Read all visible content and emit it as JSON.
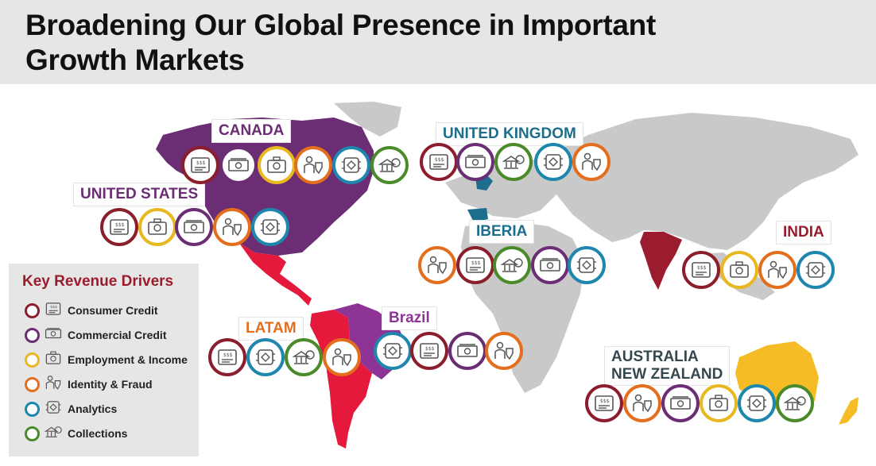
{
  "header": {
    "title_line1": "Broadening Our Global Presence in Important",
    "title_line2": "Growth Markets"
  },
  "colors": {
    "consumer_credit": "#8b1e2d",
    "commercial_credit": "#6b2d73",
    "employment_income": "#e8b821",
    "identity_fraud": "#e36f1e",
    "analytics": "#1f86ad",
    "collections": "#4a8a2a",
    "canada_us": "#6b2d73",
    "latam": "#e4193b",
    "brazil": "#8f3497",
    "india": "#9b1c2c",
    "australia": "#f6bc25",
    "uk_iberia": "#1d6e8c",
    "map_gray": "#c9c9c9"
  },
  "regions": {
    "canada": "CANADA",
    "united_states": "UNITED STATES",
    "united_kingdom": "UNITED KINGDOM",
    "iberia": "IBERIA",
    "india": "INDIA",
    "latam": "LATAM",
    "brazil": "Brazil",
    "australia_line1": "AUSTRALIA",
    "australia_line2": "NEW ZEALAND"
  },
  "legend": {
    "title": "Key Revenue Drivers",
    "items": [
      {
        "label": "Consumer Credit",
        "icon": "consumer-credit-icon"
      },
      {
        "label": "Commercial Credit",
        "icon": "commercial-credit-icon"
      },
      {
        "label": "Employment & Income",
        "icon": "employment-income-icon"
      },
      {
        "label": "Identity & Fraud",
        "icon": "identity-fraud-icon"
      },
      {
        "label": "Analytics",
        "icon": "analytics-icon"
      },
      {
        "label": "Collections",
        "icon": "collections-icon"
      }
    ]
  },
  "region_drivers": {
    "canada": [
      "consumer",
      "commercial",
      "employment",
      "identity",
      "analytics",
      "collections"
    ],
    "united_states": [
      "consumer",
      "employment",
      "commercial",
      "identity",
      "analytics"
    ],
    "united_kingdom": [
      "consumer",
      "commercial",
      "collections",
      "analytics",
      "identity"
    ],
    "iberia": [
      "identity",
      "consumer",
      "collections",
      "commercial",
      "analytics"
    ],
    "india": [
      "consumer",
      "employment",
      "identity",
      "analytics"
    ],
    "latam": [
      "consumer",
      "analytics",
      "collections",
      "identity"
    ],
    "brazil": [
      "analytics",
      "consumer",
      "commercial",
      "identity"
    ],
    "australia_nz": [
      "consumer",
      "identity",
      "commercial",
      "employment",
      "analytics",
      "collections"
    ]
  }
}
